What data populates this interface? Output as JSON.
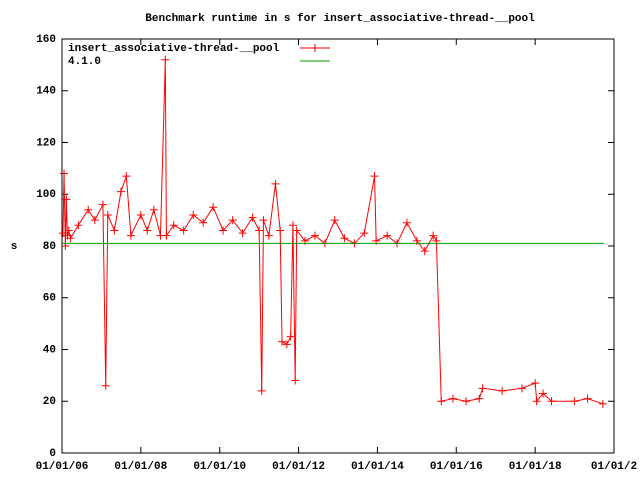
{
  "chart_data": {
    "type": "line",
    "title": "Benchmark runtime in s for insert_associative-thread-__pool",
    "y_label": "s",
    "xlim": [
      "2006-01-01",
      "2020-01-01"
    ],
    "xticks": [
      {
        "value": "2006-01-01",
        "label": "01/01/06"
      },
      {
        "value": "2008-01-01",
        "label": "01/01/08"
      },
      {
        "value": "2010-01-01",
        "label": "01/01/10"
      },
      {
        "value": "2012-01-01",
        "label": "01/01/12"
      },
      {
        "value": "2014-01-01",
        "label": "01/01/14"
      },
      {
        "value": "2016-01-01",
        "label": "01/01/16"
      },
      {
        "value": "2018-01-01",
        "label": "01/01/18"
      },
      {
        "value": "2020-01-01",
        "label": "01/01/2"
      }
    ],
    "ylim": [
      0,
      160
    ],
    "yticks": [
      0,
      20,
      40,
      60,
      80,
      100,
      120,
      140,
      160
    ],
    "legend": "top-left",
    "series": [
      {
        "name": "insert_associative-thread-__pool",
        "color": "#ff0000",
        "marker": "plus",
        "x": [
          "2006-01-10",
          "2006-01-20",
          "2006-02-01",
          "2006-02-10",
          "2006-02-20",
          "2006-03-05",
          "2006-03-20",
          "2006-06-01",
          "2006-09-01",
          "2006-11-01",
          "2007-01-15",
          "2007-02-10",
          "2007-03-01",
          "2007-05-01",
          "2007-07-01",
          "2007-08-20",
          "2007-10-01",
          "2008-01-01",
          "2008-03-01",
          "2008-05-01",
          "2008-07-01",
          "2008-08-15",
          "2008-08-25",
          "2008-11-01",
          "2009-02-01",
          "2009-05-01",
          "2009-08-01",
          "2009-11-01",
          "2010-02-01",
          "2010-05-01",
          "2010-08-01",
          "2010-11-01",
          "2011-01-01",
          "2011-01-25",
          "2011-02-10",
          "2011-04-01",
          "2011-06-01",
          "2011-07-15",
          "2011-08-01",
          "2011-09-15",
          "2011-10-20",
          "2011-11-10",
          "2011-12-01",
          "2011-12-15",
          "2012-03-01",
          "2012-06-01",
          "2012-09-01",
          "2012-12-01",
          "2013-03-01",
          "2013-06-01",
          "2013-09-01",
          "2013-12-05",
          "2013-12-20",
          "2014-04-01",
          "2014-07-01",
          "2014-10-01",
          "2015-01-01",
          "2015-03-15",
          "2015-06-01",
          "2015-07-01",
          "2015-08-15",
          "2015-12-01",
          "2016-04-01",
          "2016-08-01",
          "2016-09-01",
          "2017-03-01",
          "2017-09-01",
          "2018-01-01",
          "2018-01-15",
          "2018-03-15",
          "2018-06-01",
          "2019-01-01",
          "2019-05-01",
          "2019-09-20"
        ],
        "values": [
          85,
          108,
          80,
          98,
          84,
          86,
          83,
          88,
          94,
          90,
          96,
          26,
          92,
          86,
          101,
          107,
          84,
          92,
          86,
          94,
          84,
          152,
          84,
          88,
          86,
          92,
          89,
          95,
          86,
          90,
          85,
          91,
          86,
          24,
          90,
          84,
          104,
          86,
          43,
          42,
          45,
          88,
          28,
          86,
          82,
          84,
          81,
          90,
          83,
          81,
          85,
          107,
          82,
          84,
          81,
          89,
          82,
          78,
          84,
          82,
          20,
          21,
          20,
          21,
          25,
          24,
          25,
          27,
          20,
          23,
          20,
          20,
          21,
          19
        ]
      },
      {
        "name": "4.1.0",
        "color": "#00a000",
        "marker": "none",
        "x": [
          "2006-01-01",
          "2019-10-01"
        ],
        "values": [
          81,
          81
        ]
      }
    ]
  }
}
